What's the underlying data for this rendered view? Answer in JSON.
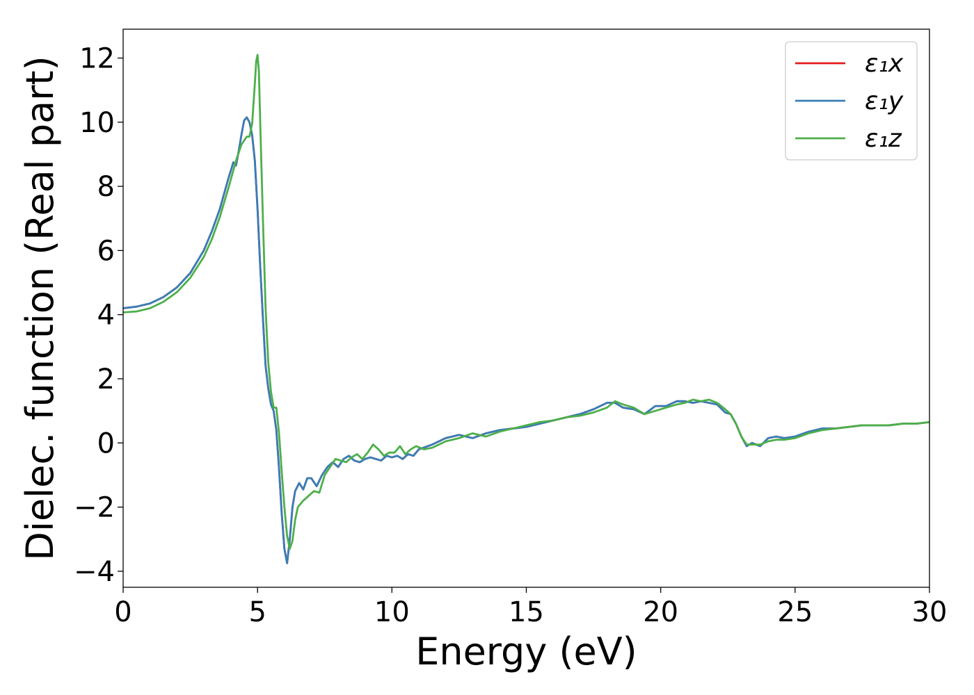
{
  "chart_data": {
    "type": "line",
    "xlabel": "Energy (eV)",
    "ylabel": "Dielec. function (Real part)",
    "xlim": [
      0,
      30
    ],
    "ylim": [
      -4.5,
      12.9
    ],
    "xticks": [
      0,
      5,
      10,
      15,
      20,
      25,
      30
    ],
    "xtick_labels": [
      "0",
      "5",
      "10",
      "15",
      "20",
      "25",
      "30"
    ],
    "yticks": [
      -4,
      -2,
      0,
      2,
      4,
      6,
      8,
      10,
      12
    ],
    "ytick_labels": [
      "−4",
      "−2",
      "0",
      "2",
      "4",
      "6",
      "8",
      "10",
      "12"
    ],
    "grid": false,
    "legend_position": "top-right",
    "series": [
      {
        "name": "ε₁x",
        "color": "#e41a1c",
        "x": [
          0,
          0.5,
          1,
          1.5,
          2,
          2.5,
          3,
          3.3,
          3.6,
          3.9,
          4.1,
          4.2,
          4.3,
          4.4,
          4.5,
          4.6,
          4.7,
          4.8,
          4.9,
          5.0,
          5.1,
          5.2,
          5.3,
          5.4,
          5.5,
          5.6,
          5.7,
          5.8,
          5.9,
          6.0,
          6.1,
          6.2,
          6.3,
          6.4,
          6.55,
          6.7,
          6.85,
          7.0,
          7.2,
          7.4,
          7.6,
          7.8,
          8.0,
          8.2,
          8.4,
          8.6,
          8.8,
          9.0,
          9.2,
          9.4,
          9.6,
          9.8,
          10.0,
          10.2,
          10.4,
          10.6,
          10.8,
          11.0,
          11.5,
          12.0,
          12.5,
          13.0,
          13.5,
          14.0,
          14.5,
          15.0,
          15.5,
          16.0,
          16.5,
          17.0,
          17.5,
          18.0,
          18.3,
          18.6,
          19.0,
          19.4,
          19.8,
          20.2,
          20.6,
          20.9,
          21.2,
          21.5,
          21.8,
          22.1,
          22.4,
          22.6,
          22.8,
          23.0,
          23.2,
          23.4,
          23.7,
          24.0,
          24.3,
          24.6,
          25.0,
          25.5,
          26.0,
          26.5,
          27.0,
          27.5,
          28.0,
          28.5,
          29.0,
          29.5,
          30.0
        ],
        "y": [
          4.2,
          4.25,
          4.35,
          4.55,
          4.85,
          5.3,
          6.0,
          6.6,
          7.3,
          8.2,
          8.75,
          8.65,
          9.1,
          9.6,
          10.05,
          10.15,
          10.0,
          9.6,
          8.8,
          7.3,
          5.5,
          3.9,
          2.4,
          1.7,
          1.2,
          1.0,
          0.4,
          -0.8,
          -2.2,
          -3.3,
          -3.75,
          -3.0,
          -2.0,
          -1.5,
          -1.25,
          -1.45,
          -1.1,
          -1.1,
          -1.35,
          -1.0,
          -0.75,
          -0.6,
          -0.75,
          -0.5,
          -0.4,
          -0.55,
          -0.6,
          -0.5,
          -0.45,
          -0.5,
          -0.55,
          -0.4,
          -0.45,
          -0.4,
          -0.5,
          -0.35,
          -0.4,
          -0.2,
          -0.05,
          0.15,
          0.25,
          0.15,
          0.3,
          0.4,
          0.45,
          0.5,
          0.6,
          0.7,
          0.8,
          0.9,
          1.05,
          1.25,
          1.25,
          1.1,
          1.05,
          0.9,
          1.15,
          1.15,
          1.3,
          1.3,
          1.25,
          1.3,
          1.25,
          1.2,
          0.95,
          0.9,
          0.6,
          0.2,
          -0.1,
          0.0,
          -0.1,
          0.15,
          0.2,
          0.15,
          0.2,
          0.35,
          0.45,
          0.45,
          0.5,
          0.55,
          0.55,
          0.55,
          0.6,
          0.6,
          0.65
        ]
      },
      {
        "name": "ε₁y",
        "color": "#377eb8",
        "x": [
          0,
          0.5,
          1,
          1.5,
          2,
          2.5,
          3,
          3.3,
          3.6,
          3.9,
          4.1,
          4.2,
          4.3,
          4.4,
          4.5,
          4.6,
          4.7,
          4.8,
          4.9,
          5.0,
          5.1,
          5.2,
          5.3,
          5.4,
          5.5,
          5.6,
          5.7,
          5.8,
          5.9,
          6.0,
          6.1,
          6.2,
          6.3,
          6.4,
          6.55,
          6.7,
          6.85,
          7.0,
          7.2,
          7.4,
          7.6,
          7.8,
          8.0,
          8.2,
          8.4,
          8.6,
          8.8,
          9.0,
          9.2,
          9.4,
          9.6,
          9.8,
          10.0,
          10.2,
          10.4,
          10.6,
          10.8,
          11.0,
          11.5,
          12.0,
          12.5,
          13.0,
          13.5,
          14.0,
          14.5,
          15.0,
          15.5,
          16.0,
          16.5,
          17.0,
          17.5,
          18.0,
          18.3,
          18.6,
          19.0,
          19.4,
          19.8,
          20.2,
          20.6,
          20.9,
          21.2,
          21.5,
          21.8,
          22.1,
          22.4,
          22.6,
          22.8,
          23.0,
          23.2,
          23.4,
          23.7,
          24.0,
          24.3,
          24.6,
          25.0,
          25.5,
          26.0,
          26.5,
          27.0,
          27.5,
          28.0,
          28.5,
          29.0,
          29.5,
          30.0
        ],
        "y": [
          4.2,
          4.25,
          4.35,
          4.55,
          4.85,
          5.3,
          6.0,
          6.6,
          7.3,
          8.2,
          8.75,
          8.65,
          9.1,
          9.6,
          10.05,
          10.15,
          10.0,
          9.6,
          8.8,
          7.3,
          5.5,
          3.9,
          2.4,
          1.7,
          1.2,
          1.0,
          0.4,
          -0.8,
          -2.2,
          -3.3,
          -3.75,
          -3.0,
          -2.0,
          -1.5,
          -1.25,
          -1.45,
          -1.1,
          -1.1,
          -1.35,
          -1.0,
          -0.75,
          -0.6,
          -0.75,
          -0.5,
          -0.4,
          -0.55,
          -0.6,
          -0.5,
          -0.45,
          -0.5,
          -0.55,
          -0.4,
          -0.45,
          -0.4,
          -0.5,
          -0.35,
          -0.4,
          -0.2,
          -0.05,
          0.15,
          0.25,
          0.15,
          0.3,
          0.4,
          0.45,
          0.5,
          0.6,
          0.7,
          0.8,
          0.9,
          1.05,
          1.25,
          1.25,
          1.1,
          1.05,
          0.9,
          1.15,
          1.15,
          1.3,
          1.3,
          1.25,
          1.3,
          1.25,
          1.2,
          0.95,
          0.9,
          0.6,
          0.2,
          -0.1,
          0.0,
          -0.1,
          0.15,
          0.2,
          0.15,
          0.2,
          0.35,
          0.45,
          0.45,
          0.5,
          0.55,
          0.55,
          0.55,
          0.6,
          0.6,
          0.65
        ]
      },
      {
        "name": "ε₁z",
        "color": "#4daf4a",
        "x": [
          0,
          0.5,
          1,
          1.5,
          2,
          2.5,
          3,
          3.3,
          3.6,
          3.9,
          4.2,
          4.4,
          4.6,
          4.7,
          4.8,
          4.9,
          4.95,
          5.0,
          5.05,
          5.1,
          5.2,
          5.3,
          5.4,
          5.5,
          5.6,
          5.7,
          5.8,
          5.9,
          6.0,
          6.1,
          6.2,
          6.3,
          6.4,
          6.5,
          6.7,
          6.9,
          7.1,
          7.3,
          7.5,
          7.7,
          7.9,
          8.1,
          8.3,
          8.5,
          8.7,
          8.9,
          9.1,
          9.3,
          9.5,
          9.7,
          9.9,
          10.1,
          10.3,
          10.5,
          10.7,
          10.9,
          11.2,
          11.5,
          12.0,
          12.5,
          13.0,
          13.5,
          14.0,
          14.5,
          15.0,
          15.5,
          16.0,
          16.5,
          17.0,
          17.5,
          18.0,
          18.3,
          18.6,
          19.0,
          19.4,
          19.8,
          20.2,
          20.6,
          20.9,
          21.2,
          21.5,
          21.8,
          22.1,
          22.4,
          22.6,
          22.8,
          23.0,
          23.2,
          23.4,
          23.7,
          24.0,
          24.3,
          24.6,
          25.0,
          25.5,
          26.0,
          26.5,
          27.0,
          27.5,
          28.0,
          28.5,
          29.0,
          29.5,
          30.0
        ],
        "y": [
          4.07,
          4.1,
          4.2,
          4.4,
          4.7,
          5.15,
          5.8,
          6.35,
          7.05,
          7.9,
          8.8,
          9.3,
          9.55,
          9.55,
          9.95,
          11.2,
          11.9,
          12.1,
          11.6,
          10.0,
          7.0,
          4.2,
          2.5,
          1.6,
          1.1,
          1.1,
          0.3,
          -0.9,
          -2.0,
          -2.9,
          -3.3,
          -3.05,
          -2.4,
          -2.0,
          -1.8,
          -1.65,
          -1.5,
          -1.55,
          -1.0,
          -0.75,
          -0.5,
          -0.55,
          -0.6,
          -0.45,
          -0.35,
          -0.5,
          -0.3,
          -0.05,
          -0.2,
          -0.4,
          -0.3,
          -0.3,
          -0.1,
          -0.35,
          -0.2,
          -0.1,
          -0.2,
          -0.15,
          0.05,
          0.15,
          0.3,
          0.2,
          0.35,
          0.45,
          0.55,
          0.65,
          0.7,
          0.8,
          0.85,
          0.95,
          1.1,
          1.3,
          1.2,
          1.1,
          0.9,
          1.0,
          1.1,
          1.2,
          1.25,
          1.35,
          1.3,
          1.35,
          1.25,
          1.05,
          0.9,
          0.6,
          0.2,
          -0.05,
          -0.05,
          -0.05,
          0.05,
          0.1,
          0.1,
          0.15,
          0.3,
          0.4,
          0.45,
          0.5,
          0.55,
          0.55,
          0.55,
          0.6,
          0.6,
          0.65
        ]
      }
    ]
  }
}
